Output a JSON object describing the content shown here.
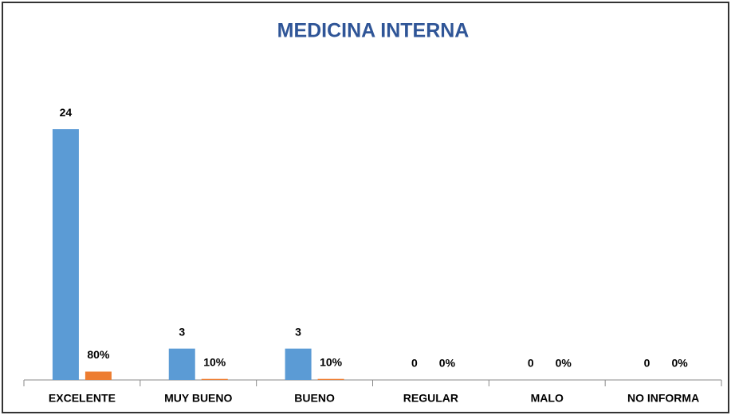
{
  "chart_data": {
    "type": "bar",
    "title": "MEDICINA INTERNA",
    "categories": [
      "EXCELENTE",
      "MUY BUENO",
      "BUENO",
      "REGULAR",
      "MALO",
      "NO INFORMA"
    ],
    "series": [
      {
        "color": "#5b9bd5",
        "values": [
          24,
          3,
          3,
          0,
          0,
          0
        ]
      },
      {
        "color": "#ed7d31",
        "axis": "y2",
        "values": [
          80,
          10,
          10,
          0,
          0,
          0
        ],
        "value_labels": [
          "80%",
          "10%",
          "10%",
          "0%",
          "0%",
          "0%"
        ]
      }
    ],
    "ylim": [
      0,
      25
    ],
    "y2lim": [
      0,
      2500
    ]
  }
}
